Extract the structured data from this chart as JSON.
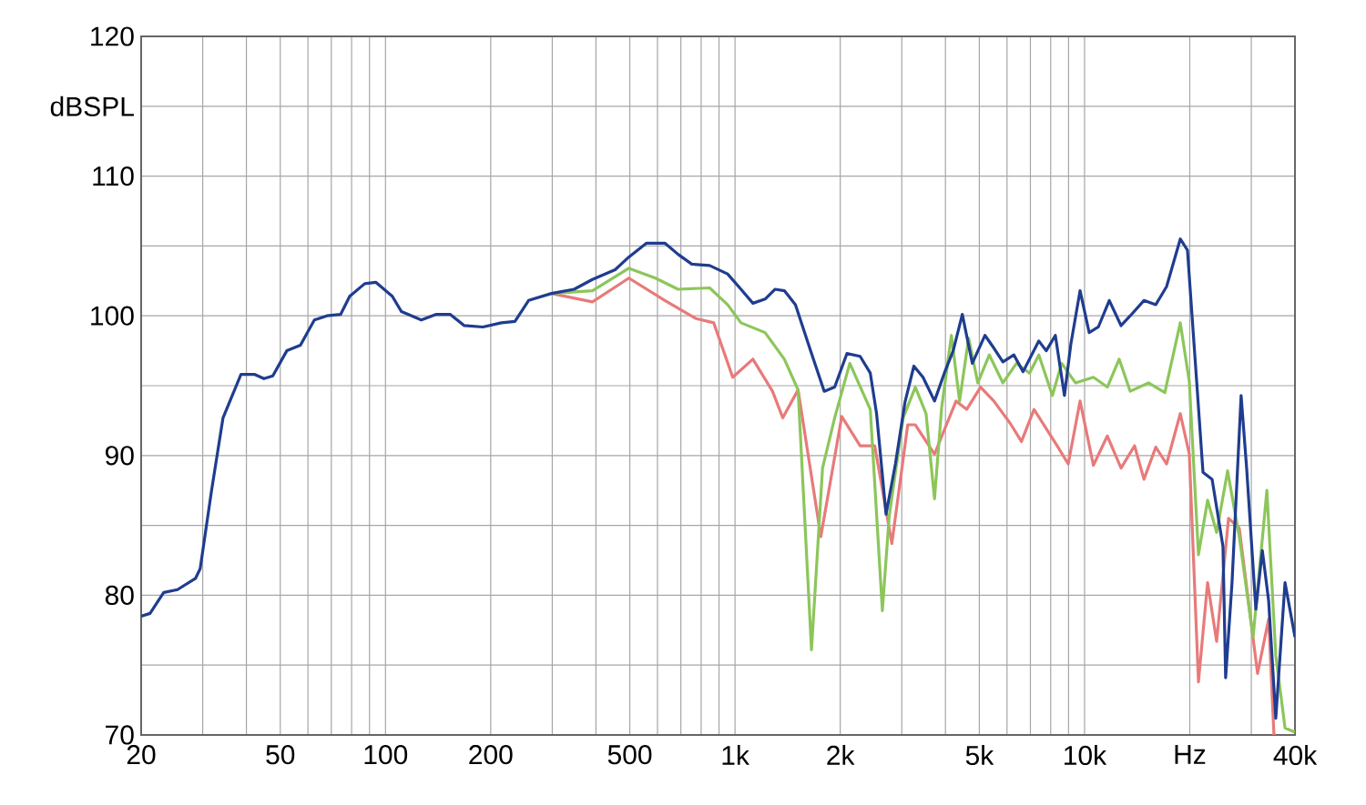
{
  "chart_data": {
    "type": "line",
    "log": "x",
    "grid": true,
    "line_style": "solid",
    "marker": "none",
    "xlim": [
      20,
      40000
    ],
    "ylim": [
      70,
      120
    ],
    "xticks": [
      {
        "value": 20,
        "label": "20"
      },
      {
        "value": 30,
        "label": null
      },
      {
        "value": 40,
        "label": null
      },
      {
        "value": 50,
        "label": "50"
      },
      {
        "value": 60,
        "label": null
      },
      {
        "value": 70,
        "label": null
      },
      {
        "value": 80,
        "label": null
      },
      {
        "value": 90,
        "label": null
      },
      {
        "value": 100,
        "label": "100"
      },
      {
        "value": 200,
        "label": "200"
      },
      {
        "value": 300,
        "label": null
      },
      {
        "value": 400,
        "label": null
      },
      {
        "value": 500,
        "label": "500"
      },
      {
        "value": 600,
        "label": null
      },
      {
        "value": 700,
        "label": null
      },
      {
        "value": 800,
        "label": null
      },
      {
        "value": 900,
        "label": null
      },
      {
        "value": 1000,
        "label": "1k"
      },
      {
        "value": 2000,
        "label": "2k"
      },
      {
        "value": 3000,
        "label": null
      },
      {
        "value": 4000,
        "label": null
      },
      {
        "value": 5000,
        "label": "5k"
      },
      {
        "value": 6000,
        "label": null
      },
      {
        "value": 7000,
        "label": null
      },
      {
        "value": 8000,
        "label": null
      },
      {
        "value": 9000,
        "label": null
      },
      {
        "value": 10000,
        "label": "10k"
      },
      {
        "value": 20000,
        "label": "Hz"
      },
      {
        "value": 30000,
        "label": null
      },
      {
        "value": 40000,
        "label": "40k"
      }
    ],
    "yticks": [
      70,
      {
        "value": 75,
        "label": null
      },
      80,
      {
        "value": 85,
        "label": null
      },
      90,
      {
        "value": 95,
        "label": null
      },
      100,
      {
        "value": 105,
        "label": null
      },
      110,
      {
        "value": 115,
        "label": "dBSPL"
      },
      120
    ],
    "series": [
      {
        "color": "#e87a7a",
        "x": [
          298,
          391,
          497,
          630,
          774,
          869,
          985,
          1125,
          1280,
          1370,
          1515,
          1760,
          2020,
          2280,
          2510,
          2810,
          3120,
          3280,
          3722,
          4290,
          4600,
          5040,
          5500,
          6130,
          6600,
          7170,
          8350,
          8980,
          9710,
          10600,
          11620,
          12720,
          13900,
          14790,
          15990,
          17170,
          18790,
          19940,
          21180,
          22490,
          23870,
          25820,
          27710,
          31260,
          33630,
          34830
        ],
        "values": [
          101.6,
          101.0,
          102.7,
          101.1,
          99.8,
          99.5,
          95.6,
          96.9,
          94.6,
          92.7,
          94.7,
          84.2,
          92.8,
          90.7,
          90.7,
          83.7,
          92.2,
          92.2,
          90.1,
          93.9,
          93.3,
          94.9,
          93.9,
          92.3,
          91.0,
          93.3,
          90.7,
          89.4,
          93.9,
          89.3,
          91.4,
          89.1,
          90.7,
          88.3,
          90.6,
          89.4,
          93.0,
          90.1,
          73.8,
          80.9,
          76.7,
          85.5,
          84.8,
          74.4,
          78.3,
          70.0
        ]
      },
      {
        "color": "#8cc65a",
        "x": [
          298,
          391,
          497,
          592,
          687,
          846,
          952,
          1040,
          1219,
          1384,
          1515,
          1655,
          1780,
          1928,
          2130,
          2438,
          2640,
          2760,
          3027,
          3280,
          3520,
          3722,
          3900,
          4160,
          4390,
          4660,
          4950,
          5340,
          5840,
          6390,
          6960,
          7400,
          8090,
          8600,
          9420,
          10600,
          11620,
          12560,
          13510,
          15240,
          16970,
          18790,
          19940,
          21180,
          22490,
          23870,
          25660,
          27710,
          30350,
          33240,
          35250,
          37460,
          40000
        ],
        "values": [
          101.6,
          101.8,
          103.4,
          102.7,
          101.9,
          102.0,
          100.8,
          99.5,
          98.8,
          96.9,
          94.7,
          76.1,
          89.1,
          92.7,
          96.6,
          93.3,
          78.9,
          85.6,
          92.7,
          94.9,
          93.0,
          86.9,
          93.4,
          98.6,
          93.9,
          98.4,
          95.2,
          97.2,
          95.2,
          96.6,
          95.9,
          97.2,
          94.3,
          96.6,
          95.2,
          95.6,
          94.9,
          96.9,
          94.6,
          95.2,
          94.5,
          99.5,
          95.3,
          82.9,
          86.8,
          84.5,
          88.9,
          84.2,
          77.0,
          87.5,
          75.7,
          70.5,
          70.2
        ]
      },
      {
        "color": "#1f3d8f",
        "x": [
          20,
          21.2,
          23.2,
          25.4,
          28.6,
          29.5,
          31.8,
          34.3,
          38.6,
          42.3,
          44.9,
          47.6,
          52.2,
          57.1,
          62.6,
          68.0,
          74.4,
          79.0,
          87.2,
          93.8,
          104.6,
          111.1,
          126.6,
          139.3,
          153.3,
          168.0,
          189.9,
          214.6,
          234.6,
          256.7,
          298.4,
          346.7,
          390.9,
          454.1,
          496.6,
          558.3,
          629.7,
          687.5,
          752.3,
          845.7,
          952,
          1040,
          1125,
          1219,
          1301,
          1384,
          1489,
          1645,
          1800,
          1928,
          2090,
          2280,
          2438,
          2541,
          2705,
          2877,
          3063,
          3249,
          3451,
          3722,
          3971,
          4209,
          4470,
          4774,
          5190,
          5500,
          5840,
          6280,
          6670,
          7400,
          7770,
          8250,
          8760,
          9140,
          9710,
          10310,
          10950,
          11770,
          12720,
          13510,
          14790,
          15990,
          17170,
          18790,
          19700,
          20930,
          21820,
          23170,
          24890,
          25330,
          26420,
          28050,
          29090,
          30910,
          32260,
          33630,
          35250,
          37460,
          40000
        ],
        "values": [
          78.5,
          78.7,
          80.2,
          80.4,
          81.2,
          81.9,
          87.5,
          92.7,
          95.8,
          95.8,
          95.5,
          95.7,
          97.5,
          97.9,
          99.7,
          100.0,
          100.1,
          101.4,
          102.3,
          102.4,
          101.4,
          100.3,
          99.7,
          100.1,
          100.1,
          99.3,
          99.2,
          99.5,
          99.6,
          101.1,
          101.6,
          101.9,
          102.6,
          103.3,
          104.2,
          105.2,
          105.2,
          104.4,
          103.7,
          103.6,
          103.0,
          101.9,
          100.9,
          101.2,
          101.9,
          101.8,
          100.8,
          97.5,
          94.6,
          94.9,
          97.3,
          97.1,
          95.9,
          93.0,
          85.8,
          89.4,
          93.8,
          96.4,
          95.6,
          93.9,
          95.9,
          97.5,
          100.1,
          96.6,
          98.6,
          97.7,
          96.7,
          97.2,
          96.0,
          98.2,
          97.5,
          98.6,
          94.3,
          98.0,
          101.8,
          98.8,
          99.2,
          101.1,
          99.3,
          100.0,
          101.1,
          100.8,
          102.1,
          105.5,
          104.7,
          95.3,
          88.8,
          88.3,
          83.5,
          74.1,
          80.9,
          94.3,
          89.1,
          79.0,
          83.2,
          79.6,
          71.2,
          80.9,
          77.0
        ]
      }
    ]
  }
}
